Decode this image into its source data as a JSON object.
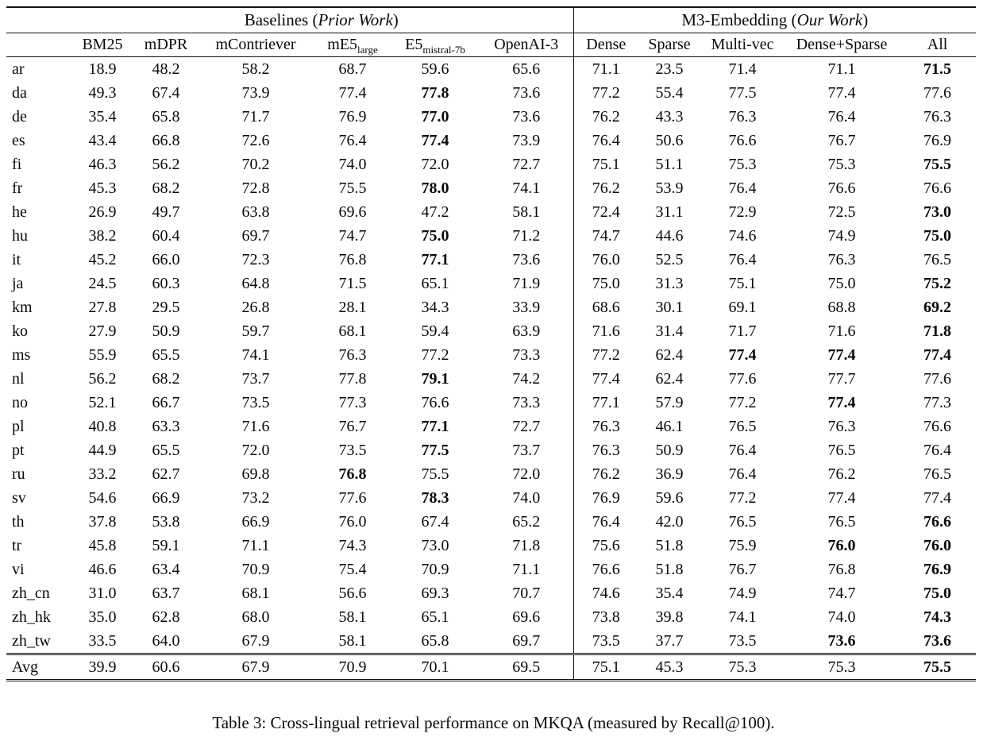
{
  "caption": "Table 3: Cross-lingual retrieval performance on MKQA (measured by Recall@100).",
  "table": {
    "groups": [
      {
        "prefix": "Baselines (",
        "italic": "Prior Work",
        "suffix": ")"
      },
      {
        "prefix": "M3-Embedding (",
        "italic": "Our Work",
        "suffix": ")"
      }
    ],
    "columns": [
      {
        "base": "BM25",
        "sub": ""
      },
      {
        "base": "mDPR",
        "sub": ""
      },
      {
        "base": "mContriever",
        "sub": ""
      },
      {
        "base": "mE5",
        "sub": "large"
      },
      {
        "base": "E5",
        "sub": "mistral-7b"
      },
      {
        "base": "OpenAI-3",
        "sub": ""
      },
      {
        "base": "Dense",
        "sub": ""
      },
      {
        "base": "Sparse",
        "sub": ""
      },
      {
        "base": "Multi-vec",
        "sub": ""
      },
      {
        "base": "Dense+Sparse",
        "sub": ""
      },
      {
        "base": "All",
        "sub": ""
      }
    ],
    "rows": [
      {
        "lang": "ar",
        "values": [
          "18.9",
          "48.2",
          "58.2",
          "68.7",
          "59.6",
          "65.6",
          "71.1",
          "23.5",
          "71.4",
          "71.1",
          "71.5"
        ],
        "bold": [
          10
        ],
        "is_avg": false
      },
      {
        "lang": "da",
        "values": [
          "49.3",
          "67.4",
          "73.9",
          "77.4",
          "77.8",
          "73.6",
          "77.2",
          "55.4",
          "77.5",
          "77.4",
          "77.6"
        ],
        "bold": [
          4
        ],
        "is_avg": false
      },
      {
        "lang": "de",
        "values": [
          "35.4",
          "65.8",
          "71.7",
          "76.9",
          "77.0",
          "73.6",
          "76.2",
          "43.3",
          "76.3",
          "76.4",
          "76.3"
        ],
        "bold": [
          4
        ],
        "is_avg": false
      },
      {
        "lang": "es",
        "values": [
          "43.4",
          "66.8",
          "72.6",
          "76.4",
          "77.4",
          "73.9",
          "76.4",
          "50.6",
          "76.6",
          "76.7",
          "76.9"
        ],
        "bold": [
          4
        ],
        "is_avg": false
      },
      {
        "lang": "fi",
        "values": [
          "46.3",
          "56.2",
          "70.2",
          "74.0",
          "72.0",
          "72.7",
          "75.1",
          "51.1",
          "75.3",
          "75.3",
          "75.5"
        ],
        "bold": [
          10
        ],
        "is_avg": false
      },
      {
        "lang": "fr",
        "values": [
          "45.3",
          "68.2",
          "72.8",
          "75.5",
          "78.0",
          "74.1",
          "76.2",
          "53.9",
          "76.4",
          "76.6",
          "76.6"
        ],
        "bold": [
          4
        ],
        "is_avg": false
      },
      {
        "lang": "he",
        "values": [
          "26.9",
          "49.7",
          "63.8",
          "69.6",
          "47.2",
          "58.1",
          "72.4",
          "31.1",
          "72.9",
          "72.5",
          "73.0"
        ],
        "bold": [
          10
        ],
        "is_avg": false
      },
      {
        "lang": "hu",
        "values": [
          "38.2",
          "60.4",
          "69.7",
          "74.7",
          "75.0",
          "71.2",
          "74.7",
          "44.6",
          "74.6",
          "74.9",
          "75.0"
        ],
        "bold": [
          4,
          10
        ],
        "is_avg": false
      },
      {
        "lang": "it",
        "values": [
          "45.2",
          "66.0",
          "72.3",
          "76.8",
          "77.1",
          "73.6",
          "76.0",
          "52.5",
          "76.4",
          "76.3",
          "76.5"
        ],
        "bold": [
          4
        ],
        "is_avg": false
      },
      {
        "lang": "ja",
        "values": [
          "24.5",
          "60.3",
          "64.8",
          "71.5",
          "65.1",
          "71.9",
          "75.0",
          "31.3",
          "75.1",
          "75.0",
          "75.2"
        ],
        "bold": [
          10
        ],
        "is_avg": false
      },
      {
        "lang": "km",
        "values": [
          "27.8",
          "29.5",
          "26.8",
          "28.1",
          "34.3",
          "33.9",
          "68.6",
          "30.1",
          "69.1",
          "68.8",
          "69.2"
        ],
        "bold": [
          10
        ],
        "is_avg": false
      },
      {
        "lang": "ko",
        "values": [
          "27.9",
          "50.9",
          "59.7",
          "68.1",
          "59.4",
          "63.9",
          "71.6",
          "31.4",
          "71.7",
          "71.6",
          "71.8"
        ],
        "bold": [
          10
        ],
        "is_avg": false
      },
      {
        "lang": "ms",
        "values": [
          "55.9",
          "65.5",
          "74.1",
          "76.3",
          "77.2",
          "73.3",
          "77.2",
          "62.4",
          "77.4",
          "77.4",
          "77.4"
        ],
        "bold": [
          8,
          9,
          10
        ],
        "is_avg": false
      },
      {
        "lang": "nl",
        "values": [
          "56.2",
          "68.2",
          "73.7",
          "77.8",
          "79.1",
          "74.2",
          "77.4",
          "62.4",
          "77.6",
          "77.7",
          "77.6"
        ],
        "bold": [
          4
        ],
        "is_avg": false
      },
      {
        "lang": "no",
        "values": [
          "52.1",
          "66.7",
          "73.5",
          "77.3",
          "76.6",
          "73.3",
          "77.1",
          "57.9",
          "77.2",
          "77.4",
          "77.3"
        ],
        "bold": [
          9
        ],
        "is_avg": false
      },
      {
        "lang": "pl",
        "values": [
          "40.8",
          "63.3",
          "71.6",
          "76.7",
          "77.1",
          "72.7",
          "76.3",
          "46.1",
          "76.5",
          "76.3",
          "76.6"
        ],
        "bold": [
          4
        ],
        "is_avg": false
      },
      {
        "lang": "pt",
        "values": [
          "44.9",
          "65.5",
          "72.0",
          "73.5",
          "77.5",
          "73.7",
          "76.3",
          "50.9",
          "76.4",
          "76.5",
          "76.4"
        ],
        "bold": [
          4
        ],
        "is_avg": false
      },
      {
        "lang": "ru",
        "values": [
          "33.2",
          "62.7",
          "69.8",
          "76.8",
          "75.5",
          "72.0",
          "76.2",
          "36.9",
          "76.4",
          "76.2",
          "76.5"
        ],
        "bold": [
          3
        ],
        "is_avg": false
      },
      {
        "lang": "sv",
        "values": [
          "54.6",
          "66.9",
          "73.2",
          "77.6",
          "78.3",
          "74.0",
          "76.9",
          "59.6",
          "77.2",
          "77.4",
          "77.4"
        ],
        "bold": [
          4
        ],
        "is_avg": false
      },
      {
        "lang": "th",
        "values": [
          "37.8",
          "53.8",
          "66.9",
          "76.0",
          "67.4",
          "65.2",
          "76.4",
          "42.0",
          "76.5",
          "76.5",
          "76.6"
        ],
        "bold": [
          10
        ],
        "is_avg": false
      },
      {
        "lang": "tr",
        "values": [
          "45.8",
          "59.1",
          "71.1",
          "74.3",
          "73.0",
          "71.8",
          "75.6",
          "51.8",
          "75.9",
          "76.0",
          "76.0"
        ],
        "bold": [
          9,
          10
        ],
        "is_avg": false
      },
      {
        "lang": "vi",
        "values": [
          "46.6",
          "63.4",
          "70.9",
          "75.4",
          "70.9",
          "71.1",
          "76.6",
          "51.8",
          "76.7",
          "76.8",
          "76.9"
        ],
        "bold": [
          10
        ],
        "is_avg": false
      },
      {
        "lang": "zh_cn",
        "values": [
          "31.0",
          "63.7",
          "68.1",
          "56.6",
          "69.3",
          "70.7",
          "74.6",
          "35.4",
          "74.9",
          "74.7",
          "75.0"
        ],
        "bold": [
          10
        ],
        "is_avg": false
      },
      {
        "lang": "zh_hk",
        "values": [
          "35.0",
          "62.8",
          "68.0",
          "58.1",
          "65.1",
          "69.6",
          "73.8",
          "39.8",
          "74.1",
          "74.0",
          "74.3"
        ],
        "bold": [
          10
        ],
        "is_avg": false
      },
      {
        "lang": "zh_tw",
        "values": [
          "33.5",
          "64.0",
          "67.9",
          "58.1",
          "65.8",
          "69.7",
          "73.5",
          "37.7",
          "73.5",
          "73.6",
          "73.6"
        ],
        "bold": [
          9,
          10
        ],
        "is_avg": false
      },
      {
        "lang": "Avg",
        "values": [
          "39.9",
          "60.6",
          "67.9",
          "70.9",
          "70.1",
          "69.5",
          "75.1",
          "45.3",
          "75.3",
          "75.3",
          "75.5"
        ],
        "bold": [
          10
        ],
        "is_avg": true
      }
    ]
  }
}
